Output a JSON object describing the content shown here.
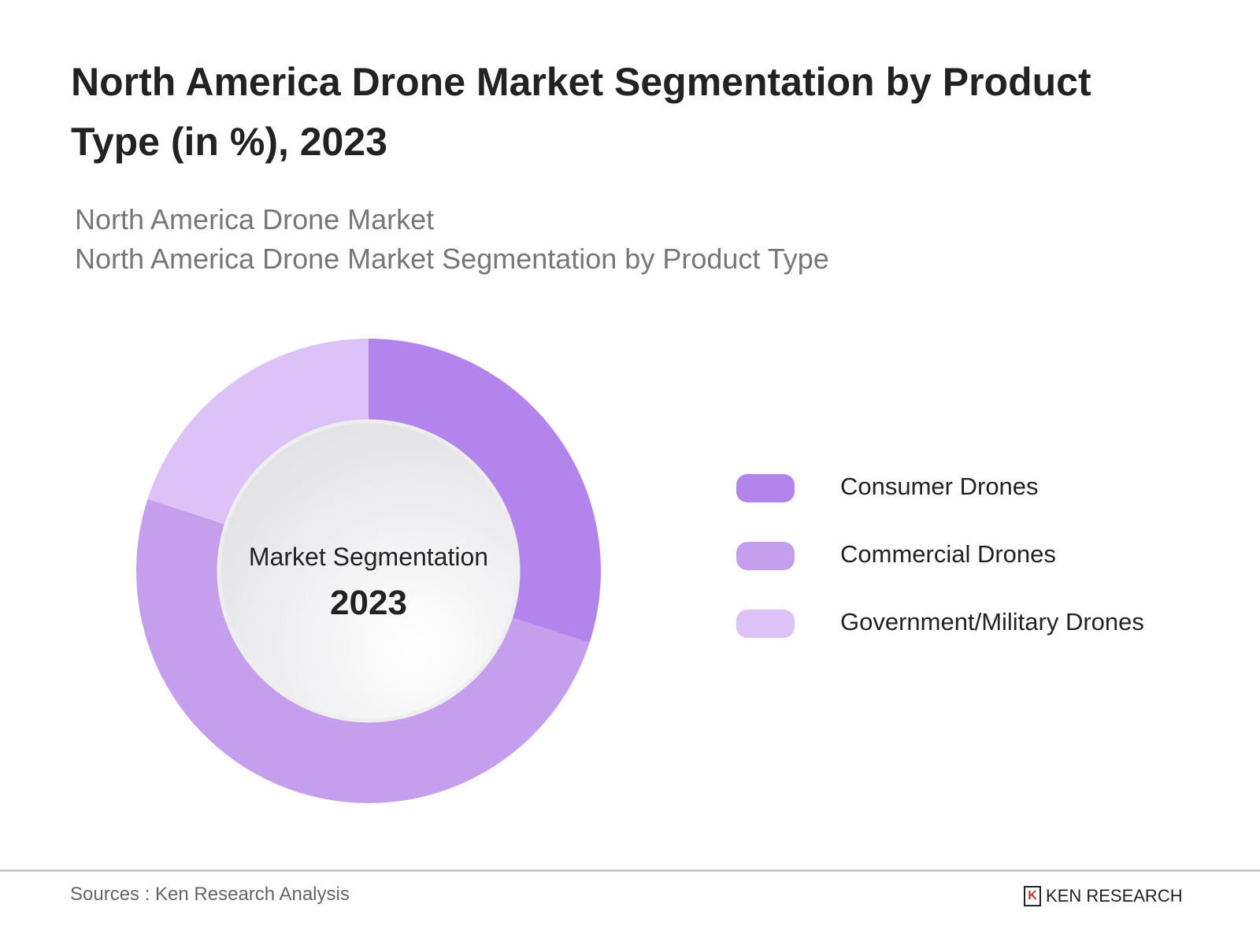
{
  "title": "North America Drone Market Segmentation by Product Type (in %), 2023",
  "subtitle1": "North America Drone Market",
  "subtitle2": "North America Drone Market Segmentation by Product Type",
  "chart_data": {
    "type": "pie",
    "variant": "donut",
    "center_label": "Market Segmentation",
    "center_value": "2023",
    "categories": [
      "Consumer Drones",
      "Commercial Drones",
      "Government/Military Drones"
    ],
    "values": [
      30,
      50,
      20
    ],
    "colors": [
      "#b385ec",
      "#c69eee",
      "#dcc2f7"
    ],
    "legend_position": "right"
  },
  "footer": {
    "source": "Sources : Ken Research Analysis",
    "logo_text": "KEN RESEARCH"
  }
}
